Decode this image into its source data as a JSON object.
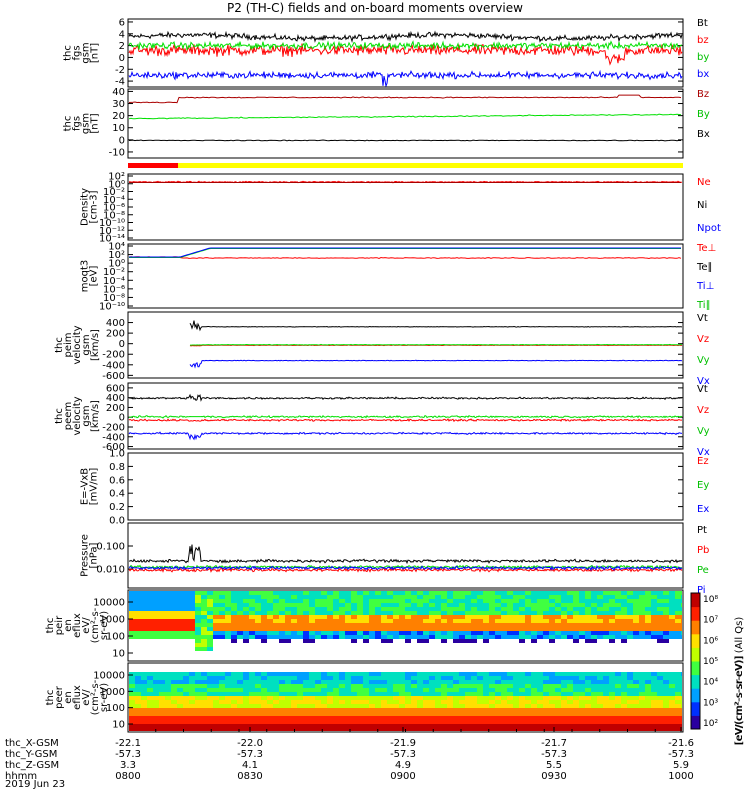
{
  "title": "P2 (TH-C) fields and on-board moments overview",
  "date": "2019 Jun 23",
  "colors": {
    "black": "#000000",
    "red": "#ff0000",
    "green": "#00e000",
    "blue": "#0000ff",
    "darkred": "#aa0000",
    "yellow": "#ffff00",
    "label_green": "#00c000"
  },
  "chart_data": [
    {
      "type": "line",
      "id": "fgs1",
      "ylabel": [
        "thc",
        "fgs",
        "gsm",
        "[nT]"
      ],
      "ylim": [
        -5,
        6.5
      ],
      "yticks": [
        -4,
        -2,
        0,
        2,
        4,
        6
      ],
      "series": [
        {
          "name": "Bt",
          "color": "black",
          "level": 3.5,
          "noise": 0.5
        },
        {
          "name": "bz",
          "color": "red",
          "level": 1.2,
          "noise": 1.0
        },
        {
          "name": "by",
          "color": "green",
          "level": 2.0,
          "noise": 0.6
        },
        {
          "name": "bx",
          "color": "blue",
          "level": -3.0,
          "noise": 0.6
        }
      ]
    },
    {
      "type": "line",
      "id": "fgs2",
      "ylabel": [
        "thc",
        "fgs",
        "gsm",
        "[nT]"
      ],
      "ylim": [
        -15,
        42
      ],
      "yticks": [
        -10,
        0,
        10,
        20,
        30,
        40
      ],
      "series": [
        {
          "name": "Bz",
          "color": "darkred",
          "level": 35,
          "noise": 0.4
        },
        {
          "name": "By",
          "color": "green",
          "level": 18,
          "noise": 0.4
        },
        {
          "name": "Bx",
          "color": "black",
          "level": -0.5,
          "noise": 0.3
        }
      ]
    },
    {
      "type": "line",
      "id": "density",
      "ylabel": [
        "Density",
        "[cm-3]"
      ],
      "scale": "log",
      "ytick_labels": [
        "10²",
        "10⁰",
        "10⁻²",
        "10⁻⁴",
        "10⁻⁶",
        "10⁻⁸",
        "10⁻¹⁰",
        "10⁻¹²",
        "10⁻¹⁴"
      ],
      "series": [
        {
          "name": "Ne",
          "color": "red"
        },
        {
          "name": "Ni",
          "color": "black"
        },
        {
          "name": "Npot",
          "color": "blue"
        }
      ]
    },
    {
      "type": "line",
      "id": "temp",
      "ylabel": [
        "moqt3",
        "[eV]"
      ],
      "scale": "log",
      "ytick_labels": [
        "10⁴",
        "10²",
        "10⁰",
        "10⁻²",
        "10⁻⁴",
        "10⁻⁶",
        "10⁻⁸",
        "10⁻¹⁰"
      ],
      "series": [
        {
          "name": "Te⊥",
          "color": "red"
        },
        {
          "name": "Te∥",
          "color": "black"
        },
        {
          "name": "Ti⊥",
          "color": "blue"
        },
        {
          "name": "Ti∥",
          "color": "green"
        }
      ]
    },
    {
      "type": "line",
      "id": "peim",
      "ylabel": [
        "thc",
        "peim",
        "velocity",
        "gsm",
        "[km/s]"
      ],
      "ylim": [
        -650,
        600
      ],
      "yticks": [
        -600,
        -400,
        -200,
        0,
        200,
        400
      ],
      "series": [
        {
          "name": "Vt",
          "color": "black",
          "level": 320
        },
        {
          "name": "Vz",
          "color": "red",
          "level": -30
        },
        {
          "name": "Vy",
          "color": "green",
          "level": -20
        },
        {
          "name": "Vx",
          "color": "blue",
          "level": -320
        }
      ]
    },
    {
      "type": "line",
      "id": "peem",
      "ylabel": [
        "thc",
        "peem",
        "velocity",
        "gsm",
        "[km/s]"
      ],
      "ylim": [
        -650,
        700
      ],
      "yticks": [
        -600,
        -400,
        -200,
        0,
        200,
        400,
        600
      ],
      "series": [
        {
          "name": "Vt",
          "color": "black",
          "level": 390
        },
        {
          "name": "Vz",
          "color": "red",
          "level": -60
        },
        {
          "name": "Vy",
          "color": "green",
          "level": 10
        },
        {
          "name": "Vx",
          "color": "blue",
          "level": -330
        }
      ]
    },
    {
      "type": "line",
      "id": "efield",
      "ylabel": [
        "E=-VxB",
        "[mV/m]"
      ],
      "ylim": [
        0,
        1.0
      ],
      "yticks": [
        0,
        0.2,
        0.4,
        0.6,
        0.8,
        1.0
      ],
      "ytick_labels": [
        "0.0",
        "0.2",
        "0.4",
        "0.6",
        "0.8",
        "1.0"
      ],
      "series": [
        {
          "name": "Ez",
          "color": "red"
        },
        {
          "name": "Ey",
          "color": "green"
        },
        {
          "name": "Ex",
          "color": "blue"
        }
      ]
    },
    {
      "type": "line",
      "id": "pressure",
      "ylabel": [
        "Pressure",
        "[nPa]"
      ],
      "scale": "log",
      "ytick_labels": [
        "0.100",
        "0.010"
      ],
      "series": [
        {
          "name": "Pt",
          "color": "black"
        },
        {
          "name": "Pb",
          "color": "red"
        },
        {
          "name": "Pe",
          "color": "green"
        },
        {
          "name": "Pi",
          "color": "blue"
        }
      ]
    },
    {
      "type": "heatmap",
      "id": "peir",
      "ylabel": [
        "thc",
        "peir",
        "en",
        "eflux",
        "eV/",
        "(cm²-s-",
        "sr-eV)"
      ],
      "ytick_labels": [
        "10000",
        "1000",
        "100",
        "10"
      ]
    },
    {
      "type": "heatmap",
      "id": "peer",
      "ylabel": [
        "thc",
        "peer",
        "en",
        "eflux",
        "eV/",
        "(cm²-s-",
        "sr-eV)"
      ],
      "ytick_labels": [
        "10000",
        "1000",
        "100",
        "10"
      ]
    }
  ],
  "colorbar": {
    "labels": [
      "10⁸",
      "10⁷",
      "10⁶",
      "10⁵",
      "10⁴",
      "10³",
      "10²"
    ],
    "title": "[eV/(cm²-s-sr-eV)] (All Qs)",
    "title2": "[eV/(cm²-s-sr-eV)]"
  },
  "xaxis": {
    "rows": [
      {
        "name": "thc_X-GSM",
        "values": [
          "-22.1",
          "-22.0",
          "-21.9",
          "-21.7",
          "-21.6"
        ]
      },
      {
        "name": "thc_Y-GSM",
        "values": [
          "-57.3",
          "-57.3",
          "-57.3",
          "-57.3",
          "-57.3"
        ]
      },
      {
        "name": "thc_Z-GSM",
        "values": [
          "3.3",
          "4.1",
          "4.9",
          "5.5",
          "5.9"
        ]
      },
      {
        "name": "hhmm",
        "values": [
          "0800",
          "0830",
          "0900",
          "0930",
          "1000"
        ]
      }
    ]
  }
}
